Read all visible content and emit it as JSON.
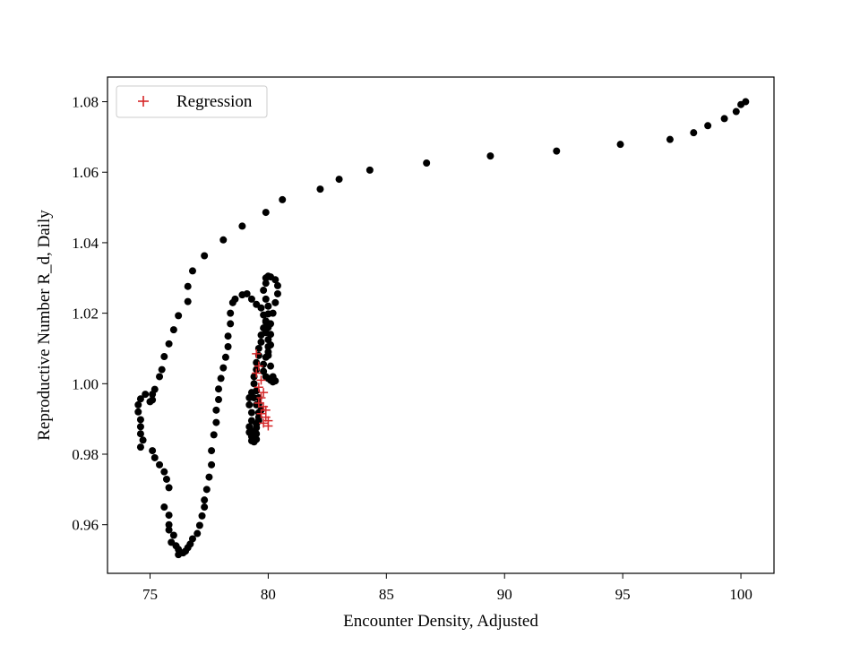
{
  "chart_data": {
    "type": "scatter",
    "title": "",
    "xlabel": "Encounter Density, Adjusted",
    "ylabel": "Reproductive Number R_d, Daily",
    "xlim": [
      73.2,
      101.4
    ],
    "ylim": [
      0.9462,
      1.087
    ],
    "x_ticks": [
      75,
      80,
      85,
      90,
      95,
      100
    ],
    "x_tick_labels": [
      "75",
      "80",
      "85",
      "90",
      "95",
      "100"
    ],
    "y_ticks": [
      0.96,
      0.98,
      1.0,
      1.02,
      1.04,
      1.06,
      1.08
    ],
    "y_tick_labels": [
      "0.96",
      "0.98",
      "1.00",
      "1.02",
      "1.04",
      "1.06",
      "1.08"
    ],
    "grid": false,
    "legend": {
      "position": "top-left",
      "entries": [
        "Regression"
      ]
    },
    "colors": {
      "observed": "#000000",
      "regression": "#d62728"
    },
    "series": [
      {
        "marker": "circle",
        "points": [
          [
            100.2,
            1.08
          ],
          [
            100.0,
            1.0792
          ],
          [
            99.8,
            1.0772
          ],
          [
            99.3,
            1.0752
          ],
          [
            98.6,
            1.0732
          ],
          [
            98.0,
            1.0712
          ],
          [
            97.0,
            1.0693
          ],
          [
            94.9,
            1.0679
          ],
          [
            92.2,
            1.066
          ],
          [
            89.4,
            1.0646
          ],
          [
            86.7,
            1.0626
          ],
          [
            84.3,
            1.0606
          ],
          [
            83.0,
            1.058
          ],
          [
            82.2,
            1.0552
          ],
          [
            80.6,
            1.0522
          ],
          [
            79.9,
            1.0486
          ],
          [
            78.9,
            1.0447
          ],
          [
            78.1,
            1.0408
          ],
          [
            77.3,
            1.0363
          ],
          [
            76.8,
            1.032
          ],
          [
            76.6,
            1.0276
          ],
          [
            76.6,
            1.0233
          ],
          [
            76.2,
            1.0193
          ],
          [
            76.0,
            1.0153
          ],
          [
            75.8,
            1.0113
          ],
          [
            75.6,
            1.0077
          ],
          [
            75.5,
            1.004
          ],
          [
            75.4,
            1.002
          ],
          [
            75.2,
            0.9984
          ],
          [
            75.1,
            0.997
          ],
          [
            75.1,
            0.9954
          ],
          [
            75.0,
            0.9949
          ],
          [
            74.8,
            0.997
          ],
          [
            74.6,
            0.9957
          ],
          [
            74.5,
            0.994
          ],
          [
            74.5,
            0.992
          ],
          [
            74.6,
            0.9898
          ],
          [
            74.6,
            0.9878
          ],
          [
            74.6,
            0.9858
          ],
          [
            74.7,
            0.984
          ],
          [
            74.6,
            0.982
          ],
          [
            75.1,
            0.981
          ],
          [
            75.2,
            0.979
          ],
          [
            75.4,
            0.977
          ],
          [
            75.6,
            0.975
          ],
          [
            75.7,
            0.9729
          ],
          [
            75.8,
            0.9705
          ],
          [
            75.6,
            0.965
          ],
          [
            75.8,
            0.9627
          ],
          [
            75.8,
            0.96
          ],
          [
            75.8,
            0.9585
          ],
          [
            76.0,
            0.957
          ],
          [
            75.9,
            0.955
          ],
          [
            76.1,
            0.954
          ],
          [
            76.2,
            0.953
          ],
          [
            76.2,
            0.9515
          ],
          [
            76.4,
            0.952
          ],
          [
            76.5,
            0.9525
          ],
          [
            76.6,
            0.9535
          ],
          [
            76.7,
            0.9545
          ],
          [
            76.8,
            0.956
          ],
          [
            77.0,
            0.9575
          ],
          [
            77.1,
            0.9598
          ],
          [
            77.2,
            0.9625
          ],
          [
            77.3,
            0.965
          ],
          [
            77.3,
            0.967
          ],
          [
            77.4,
            0.97
          ],
          [
            77.5,
            0.9735
          ],
          [
            77.6,
            0.977
          ],
          [
            77.6,
            0.981
          ],
          [
            77.7,
            0.9855
          ],
          [
            77.8,
            0.989
          ],
          [
            77.8,
            0.9925
          ],
          [
            77.9,
            0.9955
          ],
          [
            77.9,
            0.9985
          ],
          [
            78.0,
            1.0015
          ],
          [
            78.1,
            1.0045
          ],
          [
            78.2,
            1.0075
          ],
          [
            78.3,
            1.0105
          ],
          [
            78.3,
            1.0135
          ],
          [
            78.4,
            1.017
          ],
          [
            78.4,
            1.02
          ],
          [
            78.5,
            1.023
          ],
          [
            78.6,
            1.024
          ],
          [
            78.9,
            1.0252
          ],
          [
            79.1,
            1.0255
          ],
          [
            79.3,
            1.024
          ],
          [
            79.5,
            1.0225
          ],
          [
            79.7,
            1.0215
          ],
          [
            79.8,
            1.0195
          ],
          [
            79.9,
            1.0175
          ],
          [
            80.0,
            1.016
          ],
          [
            79.9,
            1.0145
          ],
          [
            80.0,
            1.0125
          ],
          [
            80.0,
            1.0105
          ],
          [
            80.0,
            1.009
          ],
          [
            79.9,
            1.0075
          ],
          [
            79.8,
            1.0055
          ],
          [
            79.8,
            1.0035
          ],
          [
            79.9,
            1.002
          ],
          [
            80.0,
            1.0015
          ],
          [
            80.1,
            1.001
          ],
          [
            80.2,
            1.0005
          ],
          [
            80.3,
            1.0008
          ],
          [
            80.2,
            1.002
          ],
          [
            80.1,
            1.005
          ],
          [
            80.0,
            1.008
          ],
          [
            80.1,
            1.011
          ],
          [
            80.1,
            1.014
          ],
          [
            80.1,
            1.017
          ],
          [
            80.2,
            1.02
          ],
          [
            80.3,
            1.023
          ],
          [
            80.4,
            1.0255
          ],
          [
            80.4,
            1.0278
          ],
          [
            80.3,
            1.0295
          ],
          [
            80.1,
            1.0303
          ],
          [
            80.0,
            1.0305
          ],
          [
            79.9,
            1.03
          ],
          [
            79.9,
            1.0285
          ],
          [
            79.8,
            1.0265
          ],
          [
            79.9,
            1.024
          ],
          [
            80.0,
            1.022
          ],
          [
            80.0,
            1.0198
          ],
          [
            79.9,
            1.0178
          ],
          [
            79.8,
            1.0158
          ],
          [
            79.7,
            1.0138
          ],
          [
            79.7,
            1.0118
          ],
          [
            79.6,
            1.01
          ],
          [
            79.6,
            1.008
          ],
          [
            79.5,
            1.006
          ],
          [
            79.5,
            1.004
          ],
          [
            79.4,
            1.002
          ],
          [
            79.4,
            1.0
          ],
          [
            79.5,
            0.998
          ],
          [
            79.6,
            0.996
          ],
          [
            79.6,
            0.9942
          ],
          [
            79.7,
            0.9925
          ],
          [
            79.6,
            0.9905
          ],
          [
            79.5,
            0.9885
          ],
          [
            79.4,
            0.9865
          ],
          [
            79.3,
            0.985
          ],
          [
            79.3,
            0.9838
          ],
          [
            79.4,
            0.9835
          ],
          [
            79.5,
            0.9842
          ],
          [
            79.5,
            0.9858
          ],
          [
            79.5,
            0.9875
          ],
          [
            79.6,
            0.9895
          ],
          [
            79.6,
            0.9918
          ],
          [
            79.5,
            0.994
          ],
          [
            79.4,
            0.996
          ],
          [
            79.3,
            0.9975
          ],
          [
            79.2,
            0.996
          ],
          [
            79.2,
            0.994
          ],
          [
            79.3,
            0.9918
          ],
          [
            79.3,
            0.9895
          ],
          [
            79.2,
            0.9878
          ],
          [
            79.2,
            0.9862
          ],
          [
            79.3,
            0.9852
          ]
        ]
      },
      {
        "name": "Regression",
        "marker": "plus",
        "points": [
          [
            79.5,
            1.0085
          ],
          [
            79.6,
            1.005
          ],
          [
            79.5,
            1.003
          ],
          [
            79.7,
            1.001
          ],
          [
            79.6,
            0.999
          ],
          [
            79.8,
            0.9975
          ],
          [
            79.7,
            0.996
          ],
          [
            79.6,
            0.9945
          ],
          [
            79.8,
            0.9935
          ],
          [
            79.9,
            0.9925
          ],
          [
            79.7,
            0.9915
          ],
          [
            79.9,
            0.9905
          ],
          [
            80.0,
            0.9895
          ],
          [
            79.8,
            0.9888
          ],
          [
            80.0,
            0.988
          ]
        ]
      }
    ]
  }
}
